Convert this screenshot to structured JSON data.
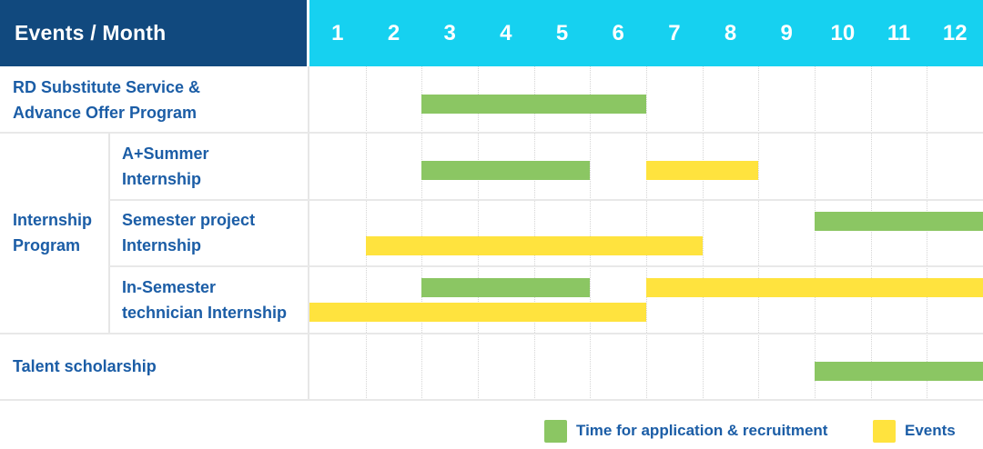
{
  "colors": {
    "header_bg": "#11497E",
    "months_bg": "#16D1F0",
    "header_text": "#FFFFFF",
    "label_text": "#1B5DA6",
    "application": "#8BC663",
    "events": "#FFE33E",
    "gridline": "#E8E8E8"
  },
  "header": {
    "corner_label": "Events / Month",
    "months": [
      "1",
      "2",
      "3",
      "4",
      "5",
      "6",
      "7",
      "8",
      "9",
      "10",
      "11",
      "12"
    ]
  },
  "legend": {
    "items": [
      {
        "series": "application",
        "label": "Time for application & recruitment"
      },
      {
        "series": "events",
        "label": "Events"
      }
    ]
  },
  "chart_data": {
    "type": "gantt",
    "title": "Events / Month",
    "x_axis": {
      "label": "Month",
      "ticks": [
        1,
        2,
        3,
        4,
        5,
        6,
        7,
        8,
        9,
        10,
        11,
        12
      ],
      "range": [
        1,
        12
      ]
    },
    "grid": true,
    "legend_position": "bottom-right",
    "series": [
      {
        "key": "application",
        "name": "Time for application & recruitment",
        "color": "#8BC663"
      },
      {
        "key": "events",
        "name": "Events",
        "color": "#FFE33E"
      }
    ],
    "group_label_lines": [
      "Internship",
      "Program"
    ],
    "rows": [
      {
        "label_lines": [
          "RD Substitute Service &",
          "Advance Offer Program"
        ],
        "group": null,
        "bars": [
          {
            "series": "application",
            "start_month": 3,
            "end_month": 6,
            "lane": "middle"
          }
        ]
      },
      {
        "label_lines": [
          "A+Summer",
          "Internship"
        ],
        "group": "Internship Program",
        "bars": [
          {
            "series": "application",
            "start_month": 3,
            "end_month": 5,
            "lane": "middle"
          },
          {
            "series": "events",
            "start_month": 7,
            "end_month": 8,
            "lane": "middle"
          }
        ]
      },
      {
        "label_lines": [
          "Semester project",
          "Internship"
        ],
        "group": "Internship Program",
        "bars": [
          {
            "series": "application",
            "start_month": 10,
            "end_month": 12,
            "lane": "upper"
          },
          {
            "series": "events",
            "start_month": 2,
            "end_month": 7,
            "lane": "lower"
          }
        ]
      },
      {
        "label_lines": [
          "In-Semester",
          "technician Internship"
        ],
        "group": "Internship Program",
        "bars": [
          {
            "series": "application",
            "start_month": 3,
            "end_month": 5,
            "lane": "upper"
          },
          {
            "series": "events",
            "start_month": 7,
            "end_month": 12,
            "lane": "upper"
          },
          {
            "series": "events",
            "start_month": 1,
            "end_month": 6,
            "lane": "lower"
          }
        ]
      },
      {
        "label_lines": [
          "Talent scholarship"
        ],
        "group": null,
        "bars": [
          {
            "series": "application",
            "start_month": 10,
            "end_month": 12,
            "lane": "middle"
          }
        ]
      }
    ]
  }
}
